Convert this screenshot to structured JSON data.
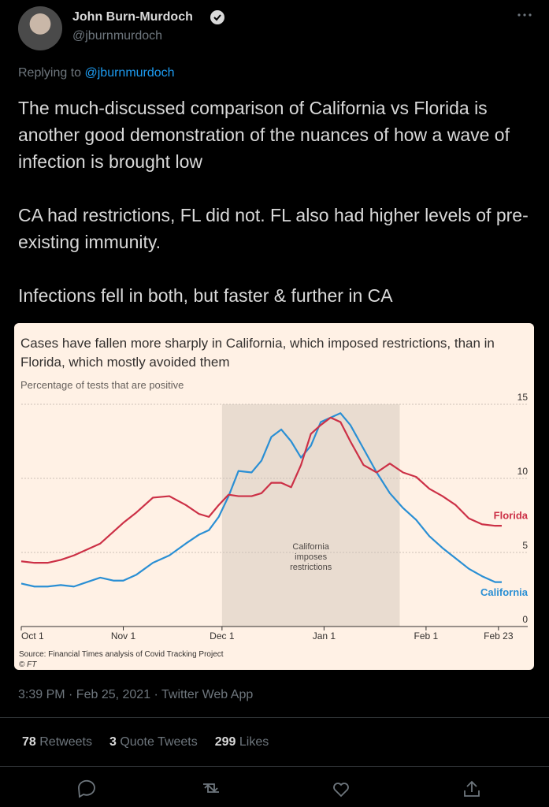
{
  "tweet": {
    "name": "John Burn-Murdoch",
    "handle": "@jburnmurdoch",
    "reply_prefix": "Replying to",
    "reply_to": "@jburnmurdoch",
    "paragraphs": [
      "The much-discussed comparison of California vs Florida is another good demonstration of the nuances of how a wave of infection is brought low",
      "CA had restrictions, FL did not. FL also had higher levels of pre-existing immunity.",
      "Infections fell in both, but faster & further in CA"
    ],
    "timestamp": "3:39 PM · Feb 25, 2021 · Twitter Web App",
    "stats": [
      {
        "count": "78",
        "label": "Retweets"
      },
      {
        "count": "3",
        "label": "Quote Tweets"
      },
      {
        "count": "299",
        "label": "Likes"
      }
    ]
  },
  "chart_data": {
    "type": "line",
    "title": "Cases have fallen more sharply in California, which imposed restrictions, than in Florida, which mostly avoided them",
    "subtitle": "Percentage of tests that are positive",
    "source": "Source: Financial Times analysis of Covid Tracking Project",
    "credit": "© FT",
    "annotation": {
      "text": "California imposes restrictions",
      "span": [
        61,
        115
      ],
      "color": "#e9dcd0"
    },
    "x": [
      0,
      4,
      8,
      12,
      16,
      20,
      24,
      28,
      31,
      35,
      40,
      45,
      50,
      54,
      57,
      60,
      63,
      66,
      70,
      73,
      76,
      79,
      82,
      85,
      88,
      91,
      94,
      97,
      100,
      104,
      108,
      112,
      116,
      120,
      124,
      128,
      132,
      136,
      140,
      144,
      146
    ],
    "xlim": [
      0,
      146
    ],
    "xticks": [
      {
        "value": 0,
        "label": "Oct 1"
      },
      {
        "value": 31,
        "label": "Nov 1"
      },
      {
        "value": 61,
        "label": "Dec 1"
      },
      {
        "value": 92,
        "label": "Jan 1"
      },
      {
        "value": 123,
        "label": "Feb 1"
      },
      {
        "value": 145,
        "label": "Feb 23"
      }
    ],
    "ylim": [
      0,
      15
    ],
    "yticks": [
      0,
      5,
      10,
      15
    ],
    "grid": true,
    "series": [
      {
        "name": "California",
        "color": "#2a8fd4",
        "values": [
          2.9,
          2.7,
          2.7,
          2.8,
          2.7,
          3.0,
          3.3,
          3.1,
          3.1,
          3.5,
          4.3,
          4.8,
          5.6,
          6.2,
          6.5,
          7.4,
          8.8,
          10.5,
          10.4,
          11.2,
          12.8,
          13.3,
          12.5,
          11.4,
          12.2,
          13.8,
          14.1,
          14.4,
          13.6,
          12.0,
          10.4,
          9.0,
          8.0,
          7.2,
          6.1,
          5.3,
          4.6,
          3.9,
          3.4,
          3.0,
          3.0
        ]
      },
      {
        "name": "Florida",
        "color": "#cc3046",
        "values": [
          4.4,
          4.3,
          4.3,
          4.5,
          4.8,
          5.2,
          5.6,
          6.4,
          7.0,
          7.7,
          8.7,
          8.8,
          8.2,
          7.6,
          7.4,
          8.2,
          8.9,
          8.8,
          8.8,
          9.0,
          9.7,
          9.7,
          9.4,
          10.9,
          13.0,
          13.6,
          14.1,
          13.8,
          12.5,
          10.9,
          10.4,
          11.0,
          10.4,
          10.1,
          9.3,
          8.8,
          8.2,
          7.3,
          6.9,
          6.8,
          6.8
        ]
      }
    ]
  }
}
